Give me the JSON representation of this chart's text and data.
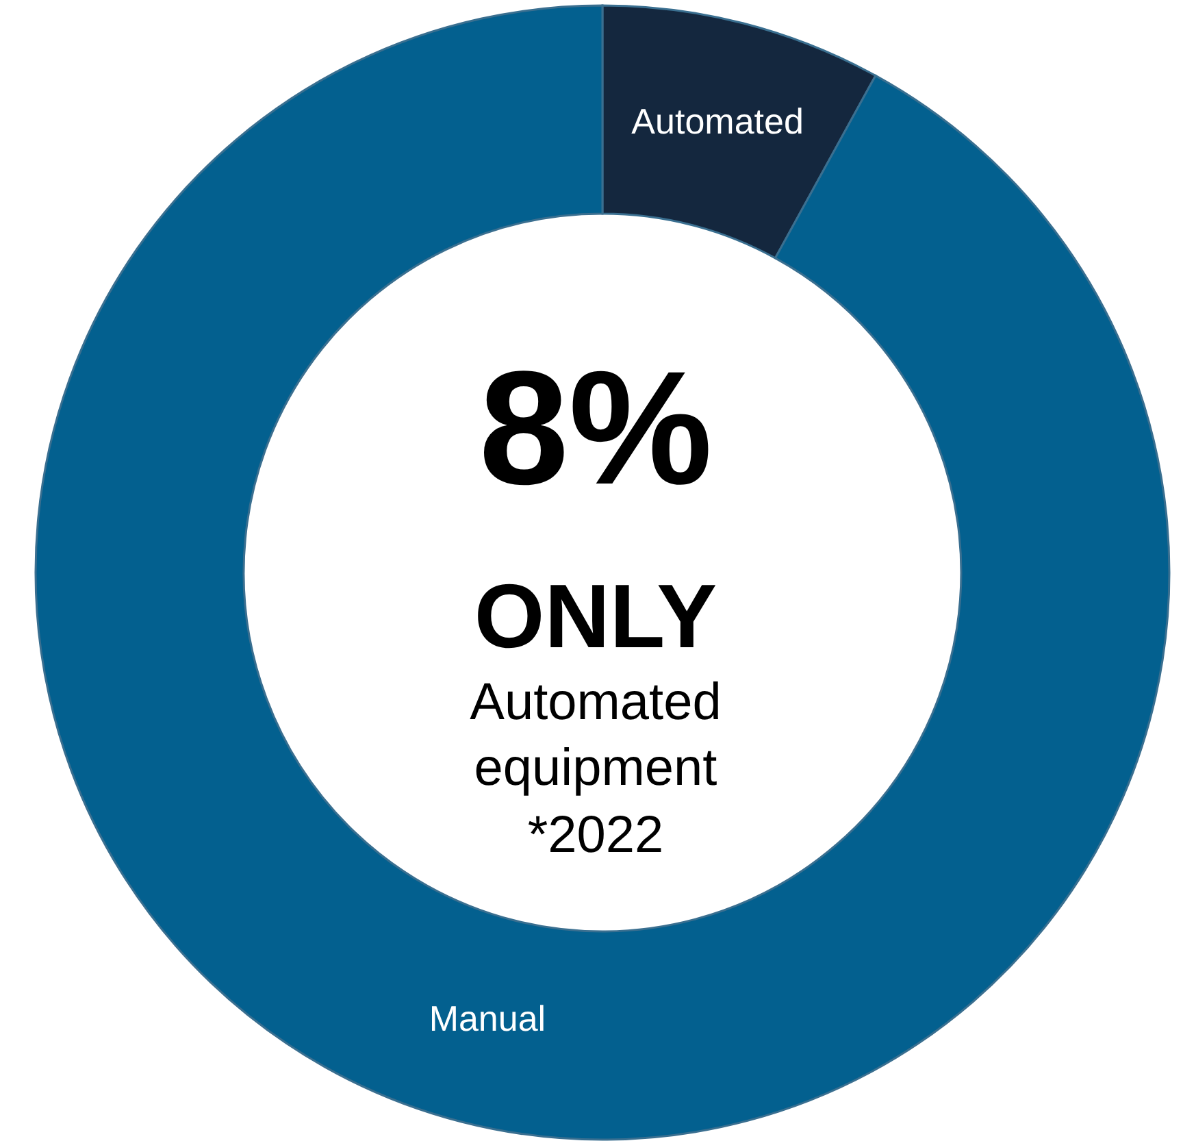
{
  "chart_data": {
    "type": "donut",
    "categories": [
      "Automated",
      "Manual"
    ],
    "values": [
      8,
      92
    ],
    "colors": [
      "#14273e",
      "#03608f"
    ],
    "annotations": [
      "8%",
      "ONLY",
      "Automated equipment",
      "*2022"
    ]
  }
}
